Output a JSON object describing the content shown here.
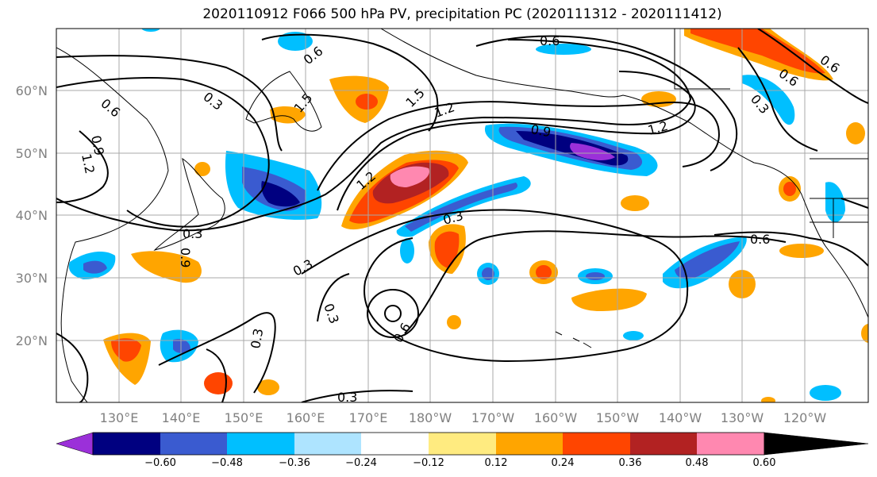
{
  "title": "2020110912 F066 500 hPa PV, precipitation PC (2020111312 - 2020111412)",
  "lon_ticks": [
    "130°E",
    "140°E",
    "150°E",
    "160°E",
    "170°E",
    "180°W",
    "170°W",
    "160°W",
    "150°W",
    "140°W",
    "130°W",
    "120°W"
  ],
  "lat_ticks": [
    "60°N",
    "50°N",
    "40°N",
    "30°N",
    "20°N"
  ],
  "contour_labels": [
    "0.6",
    "0.6",
    "1.5",
    "1.5",
    "1.2",
    "0.9",
    "1.2",
    "0.3",
    "0.9",
    "1.2",
    "0.3",
    "0.9",
    "0.3",
    "0.3",
    "0.3",
    "0.6",
    "0.3",
    "0.6",
    "0.6",
    "0.3",
    "1.2",
    "0.3",
    "0.6",
    "0.6"
  ],
  "colorbar": {
    "ticks": [
      "−0.60",
      "−0.48",
      "−0.36",
      "−0.24",
      "−0.12",
      "0.12",
      "0.24",
      "0.36",
      "0.48",
      "0.60"
    ],
    "colors": [
      "#9b30d9",
      "#000080",
      "#3a5bd0",
      "#00bfff",
      "#aee4ff",
      "#ffffff",
      "#ffeb80",
      "#ffa500",
      "#ff4500",
      "#b22222",
      "#ff88b0"
    ]
  }
}
